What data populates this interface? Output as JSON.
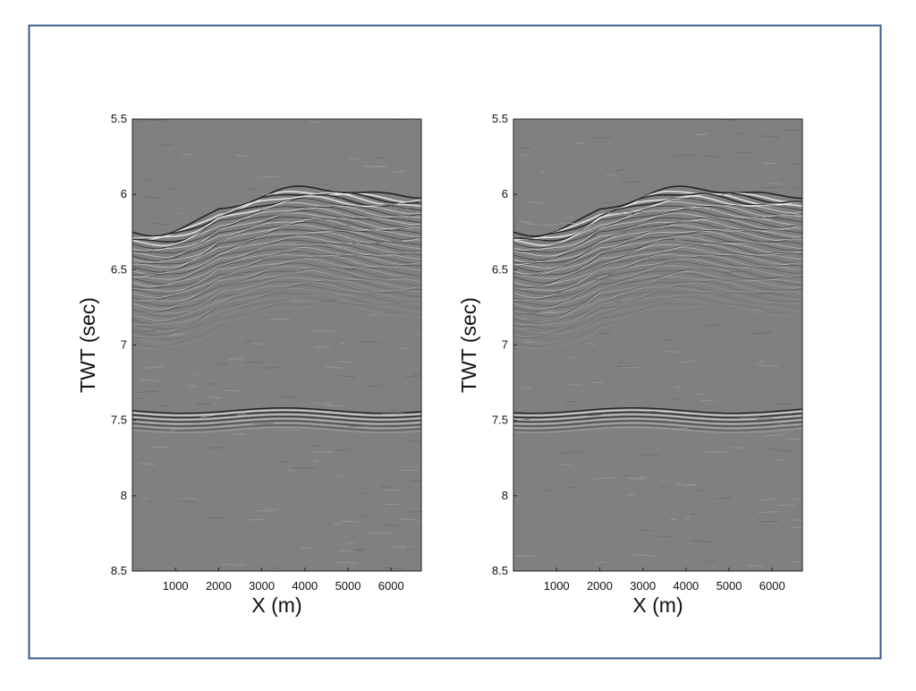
{
  "chart_data": [
    {
      "type": "seismic",
      "xlabel": "X (m)",
      "ylabel": "TWT (sec)",
      "xlim": [
        0,
        6700
      ],
      "xticks": [
        1000,
        2000,
        3000,
        4000,
        5000,
        6000
      ],
      "ylim": [
        5.5,
        8.5
      ],
      "yticks": [
        5.5,
        6,
        6.5,
        7,
        7.5,
        8,
        8.5
      ],
      "y_inverted": true
    },
    {
      "type": "seismic",
      "xlabel": "X (m)",
      "ylabel": "TWT (sec)",
      "xlim": [
        0,
        6700
      ],
      "xticks": [
        1000,
        2000,
        3000,
        4000,
        5000,
        6000
      ],
      "ylim": [
        5.5,
        8.5
      ],
      "yticks": [
        5.5,
        6,
        6.5,
        7,
        7.5,
        8,
        8.5
      ],
      "y_inverted": true
    }
  ]
}
